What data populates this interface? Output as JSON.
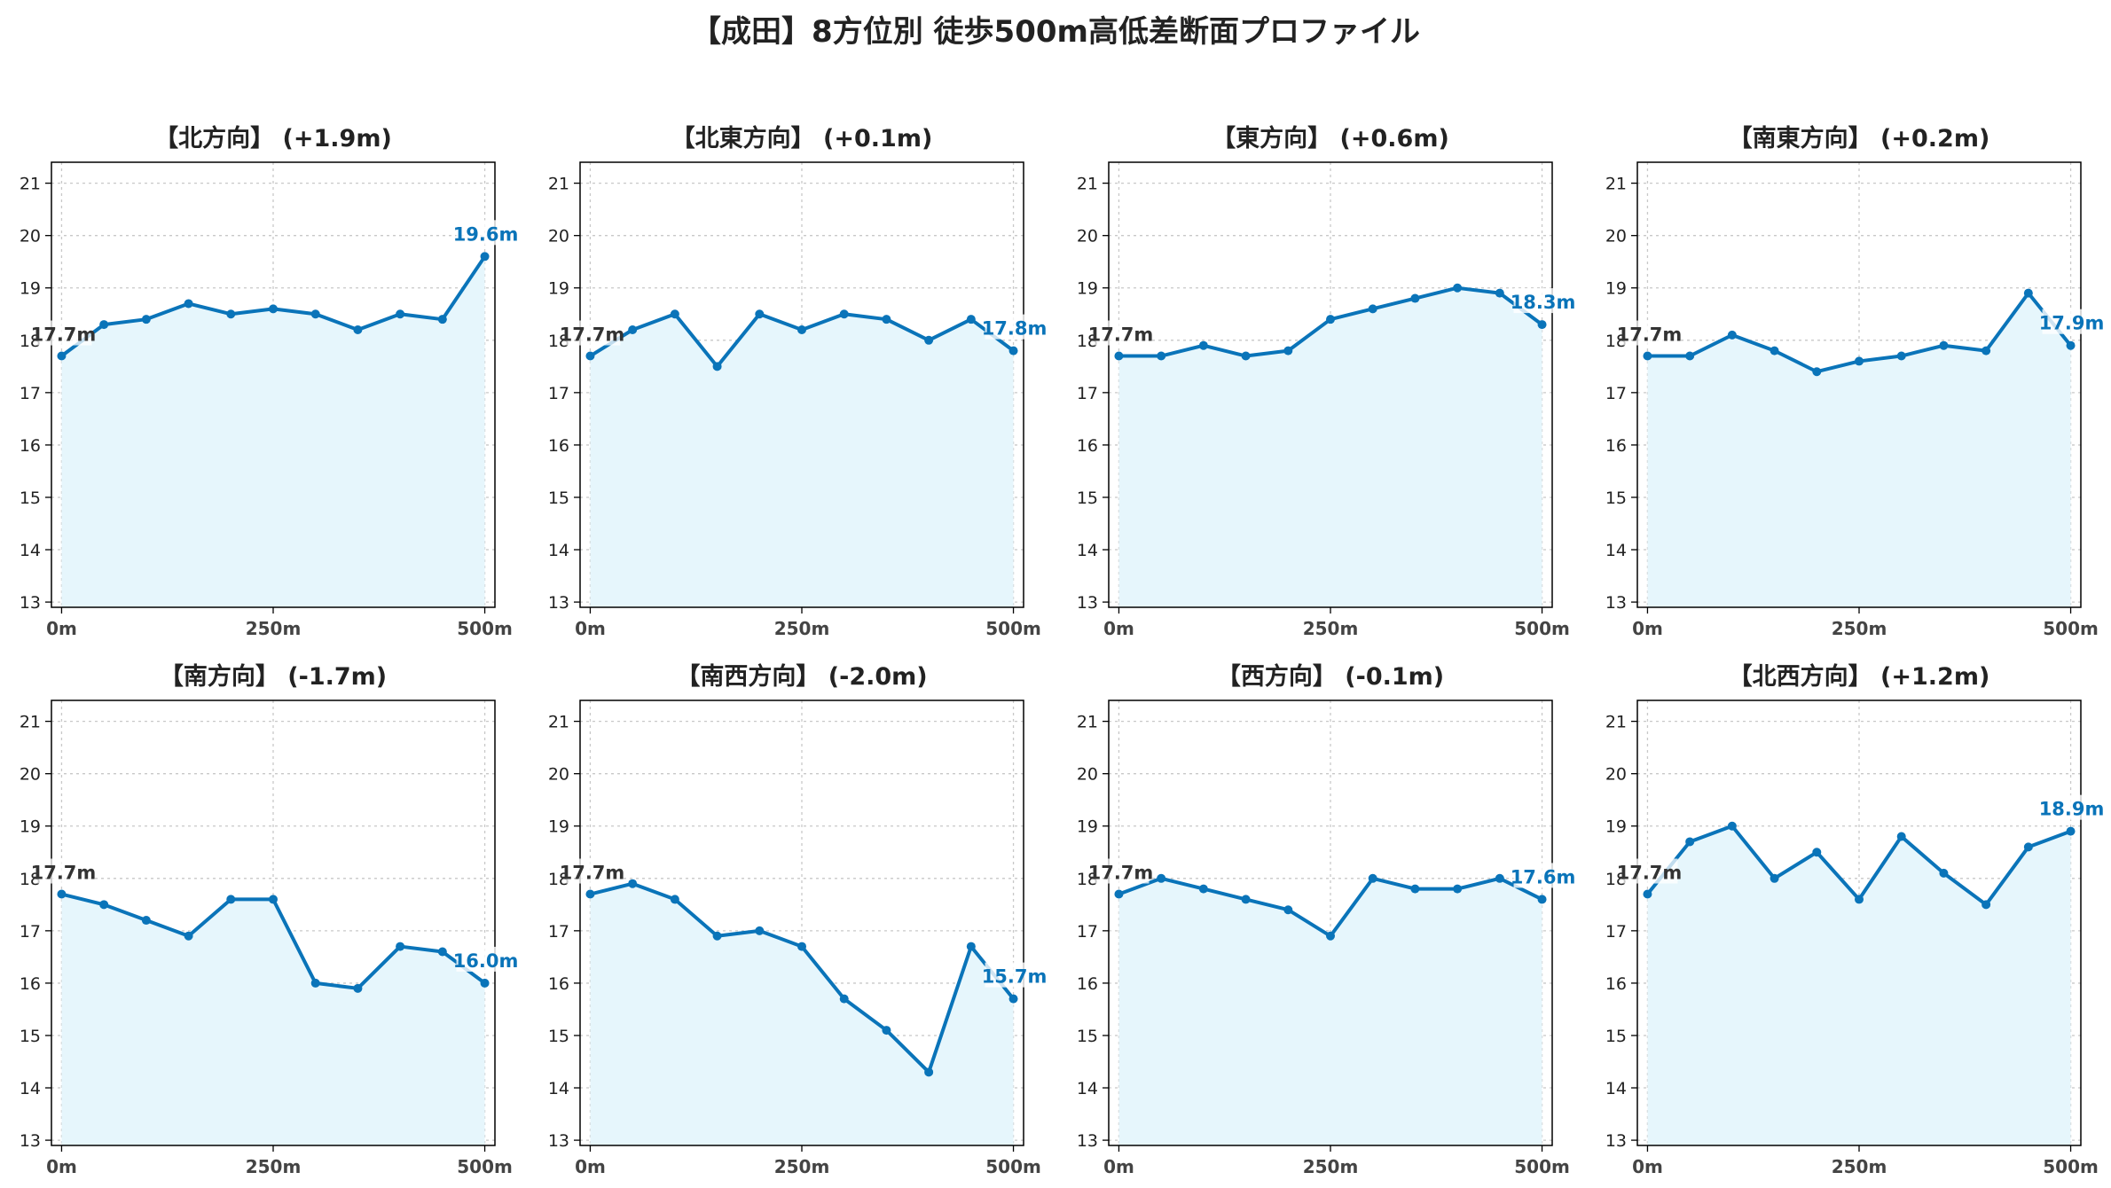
{
  "title": "【成田】8方位別 徒歩500m高低差断面プロファイル",
  "colors": {
    "line": "#0a74b9",
    "fill": "#e6f6fc",
    "grid": "#c8c8c8",
    "start_label": "#333333"
  },
  "chart_data": [
    {
      "type": "area",
      "title": "【北方向】 (+1.9m)",
      "x": [
        0,
        50,
        100,
        150,
        200,
        250,
        300,
        350,
        400,
        450,
        500
      ],
      "values": [
        17.7,
        18.3,
        18.4,
        18.7,
        18.5,
        18.6,
        18.5,
        18.2,
        18.5,
        18.4,
        19.6
      ],
      "start_label": "17.7m",
      "end_label": "19.6m",
      "xticks": [
        "0m",
        "250m",
        "500m"
      ],
      "yticks": [
        "13",
        "14",
        "15",
        "16",
        "17",
        "18",
        "19",
        "20",
        "21"
      ],
      "ylim": [
        12.9,
        21.4
      ],
      "xlim": [
        -12,
        512
      ],
      "grid": true
    },
    {
      "type": "area",
      "title": "【北東方向】 (+0.1m)",
      "x": [
        0,
        50,
        100,
        150,
        200,
        250,
        300,
        350,
        400,
        450,
        500
      ],
      "values": [
        17.7,
        18.2,
        18.5,
        17.5,
        18.5,
        18.2,
        18.5,
        18.4,
        18.0,
        18.4,
        17.8
      ],
      "start_label": "17.7m",
      "end_label": "17.8m",
      "xticks": [
        "0m",
        "250m",
        "500m"
      ],
      "yticks": [
        "13",
        "14",
        "15",
        "16",
        "17",
        "18",
        "19",
        "20",
        "21"
      ],
      "ylim": [
        12.9,
        21.4
      ],
      "xlim": [
        -12,
        512
      ],
      "grid": true
    },
    {
      "type": "area",
      "title": "【東方向】 (+0.6m)",
      "x": [
        0,
        50,
        100,
        150,
        200,
        250,
        300,
        350,
        400,
        450,
        500
      ],
      "values": [
        17.7,
        17.7,
        17.9,
        17.7,
        17.8,
        18.4,
        18.6,
        18.8,
        19.0,
        18.9,
        18.3
      ],
      "start_label": "17.7m",
      "end_label": "18.3m",
      "xticks": [
        "0m",
        "250m",
        "500m"
      ],
      "yticks": [
        "13",
        "14",
        "15",
        "16",
        "17",
        "18",
        "19",
        "20",
        "21"
      ],
      "ylim": [
        12.9,
        21.4
      ],
      "xlim": [
        -12,
        512
      ],
      "grid": true
    },
    {
      "type": "area",
      "title": "【南東方向】 (+0.2m)",
      "x": [
        0,
        50,
        100,
        150,
        200,
        250,
        300,
        350,
        400,
        450,
        500
      ],
      "values": [
        17.7,
        17.7,
        18.1,
        17.8,
        17.4,
        17.6,
        17.7,
        17.9,
        17.8,
        18.9,
        17.9
      ],
      "start_label": "17.7m",
      "end_label": "17.9m",
      "xticks": [
        "0m",
        "250m",
        "500m"
      ],
      "yticks": [
        "13",
        "14",
        "15",
        "16",
        "17",
        "18",
        "19",
        "20",
        "21"
      ],
      "ylim": [
        12.9,
        21.4
      ],
      "xlim": [
        -12,
        512
      ],
      "grid": true
    },
    {
      "type": "area",
      "title": "【南方向】 (-1.7m)",
      "x": [
        0,
        50,
        100,
        150,
        200,
        250,
        300,
        350,
        400,
        450,
        500
      ],
      "values": [
        17.7,
        17.5,
        17.2,
        16.9,
        17.6,
        17.6,
        16.0,
        15.9,
        16.7,
        16.6,
        16.0
      ],
      "start_label": "17.7m",
      "end_label": "16.0m",
      "xticks": [
        "0m",
        "250m",
        "500m"
      ],
      "yticks": [
        "13",
        "14",
        "15",
        "16",
        "17",
        "18",
        "19",
        "20",
        "21"
      ],
      "ylim": [
        12.9,
        21.4
      ],
      "xlim": [
        -12,
        512
      ],
      "grid": true
    },
    {
      "type": "area",
      "title": "【南西方向】 (-2.0m)",
      "x": [
        0,
        50,
        100,
        150,
        200,
        250,
        300,
        350,
        400,
        450,
        500
      ],
      "values": [
        17.7,
        17.9,
        17.6,
        16.9,
        17.0,
        16.7,
        15.7,
        15.1,
        14.3,
        16.7,
        15.7
      ],
      "start_label": "17.7m",
      "end_label": "15.7m",
      "xticks": [
        "0m",
        "250m",
        "500m"
      ],
      "yticks": [
        "13",
        "14",
        "15",
        "16",
        "17",
        "18",
        "19",
        "20",
        "21"
      ],
      "ylim": [
        12.9,
        21.4
      ],
      "xlim": [
        -12,
        512
      ],
      "grid": true
    },
    {
      "type": "area",
      "title": "【西方向】 (-0.1m)",
      "x": [
        0,
        50,
        100,
        150,
        200,
        250,
        300,
        350,
        400,
        450,
        500
      ],
      "values": [
        17.7,
        18.0,
        17.8,
        17.6,
        17.4,
        16.9,
        18.0,
        17.8,
        17.8,
        18.0,
        17.6
      ],
      "start_label": "17.7m",
      "end_label": "17.6m",
      "xticks": [
        "0m",
        "250m",
        "500m"
      ],
      "yticks": [
        "13",
        "14",
        "15",
        "16",
        "17",
        "18",
        "19",
        "20",
        "21"
      ],
      "ylim": [
        12.9,
        21.4
      ],
      "xlim": [
        -12,
        512
      ],
      "grid": true
    },
    {
      "type": "area",
      "title": "【北西方向】 (+1.2m)",
      "x": [
        0,
        50,
        100,
        150,
        200,
        250,
        300,
        350,
        400,
        450,
        500
      ],
      "values": [
        17.7,
        18.7,
        19.0,
        18.0,
        18.5,
        17.6,
        18.8,
        18.1,
        17.5,
        18.6,
        18.9
      ],
      "start_label": "17.7m",
      "end_label": "18.9m",
      "xticks": [
        "0m",
        "250m",
        "500m"
      ],
      "yticks": [
        "13",
        "14",
        "15",
        "16",
        "17",
        "18",
        "19",
        "20",
        "21"
      ],
      "ylim": [
        12.9,
        21.4
      ],
      "xlim": [
        -12,
        512
      ],
      "grid": true
    }
  ]
}
